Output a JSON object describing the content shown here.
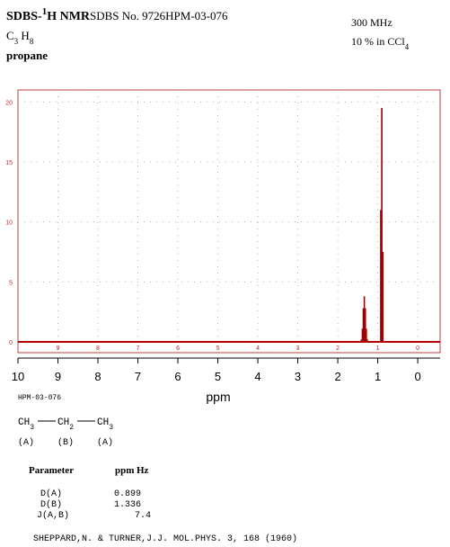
{
  "header": {
    "title_parts": [
      "SDBS-",
      "1",
      "H NMR"
    ],
    "sdbs_no": "SDBS No. 9726HPM-03-076",
    "formula_parts": [
      "C",
      "3",
      " H",
      "8"
    ],
    "name": "propane",
    "frequency": "300 MHz",
    "solvent_parts": [
      "10 % in CCl",
      "4"
    ]
  },
  "chart_data": {
    "type": "stem",
    "xlabel": "ppm",
    "x": [
      1.41,
      1.385,
      1.361,
      1.336,
      1.311,
      1.287,
      1.262,
      0.924,
      0.899,
      0.874
    ],
    "values": [
      0.2,
      1.1,
      2.8,
      3.8,
      2.8,
      1.1,
      0.2,
      11,
      19.5,
      7.5
    ],
    "color": "#a00000",
    "xlim": [
      10,
      -0.56
    ],
    "ylim": [
      -0.9,
      21
    ],
    "xticks": [
      10,
      9,
      8,
      7,
      6,
      5,
      4,
      3,
      2,
      1,
      0
    ],
    "yticks": [
      0,
      5,
      10,
      15,
      20
    ],
    "grid": true
  },
  "code": "HPM-03-076",
  "structure": {
    "groups": [
      [
        "CH",
        "3"
      ],
      [
        "CH",
        "2"
      ],
      [
        "CH",
        "3"
      ]
    ],
    "labels": [
      "(A)",
      "(B)",
      "(A)"
    ]
  },
  "table": {
    "header": [
      "Parameter",
      "ppm",
      "Hz"
    ],
    "rows": [
      {
        "name": "D(A)",
        "ppm": "0.899"
      },
      {
        "name": "D(B)",
        "ppm": "1.336"
      },
      {
        "name": "J(A,B)",
        "hz": "7.4"
      }
    ]
  },
  "reference": "SHEPPARD,N. & TURNER,J.J. MOL.PHYS. 3, 168 (1960)"
}
